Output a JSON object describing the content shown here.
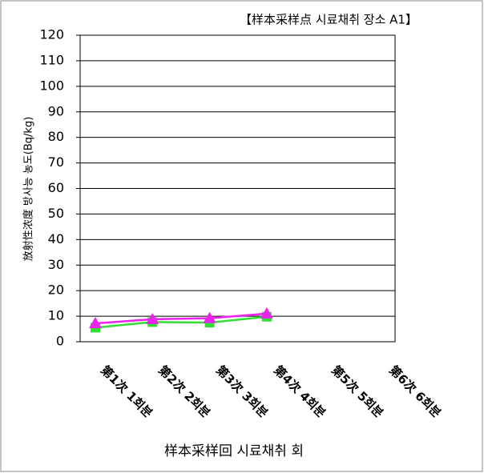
{
  "chart_data": {
    "type": "line",
    "title": "【样本采样点  시료채취 장소  A1】",
    "y_label": "放射性浓度  방사능 농도(Bq/kg)",
    "x_label": "样本采样回  시료채취 회",
    "categories": [
      "第1次  1회분",
      "第2次  2회분",
      "第3次  3회분",
      "第4次  4회분",
      "第5次  5회분",
      "第6次  6회분"
    ],
    "series": [
      {
        "color": "#33dd33",
        "marker": "square",
        "values": [
          5.5,
          7.7,
          7.5,
          9.8,
          null,
          null
        ]
      },
      {
        "color": "#ee22ee",
        "marker": "triangle",
        "values": [
          7.2,
          8.8,
          9.2,
          11,
          null,
          null
        ]
      }
    ],
    "ylim": [
      0,
      120
    ],
    "yticks": [
      0,
      10,
      20,
      30,
      40,
      50,
      60,
      70,
      80,
      90,
      100,
      110,
      120
    ],
    "grid": true
  }
}
